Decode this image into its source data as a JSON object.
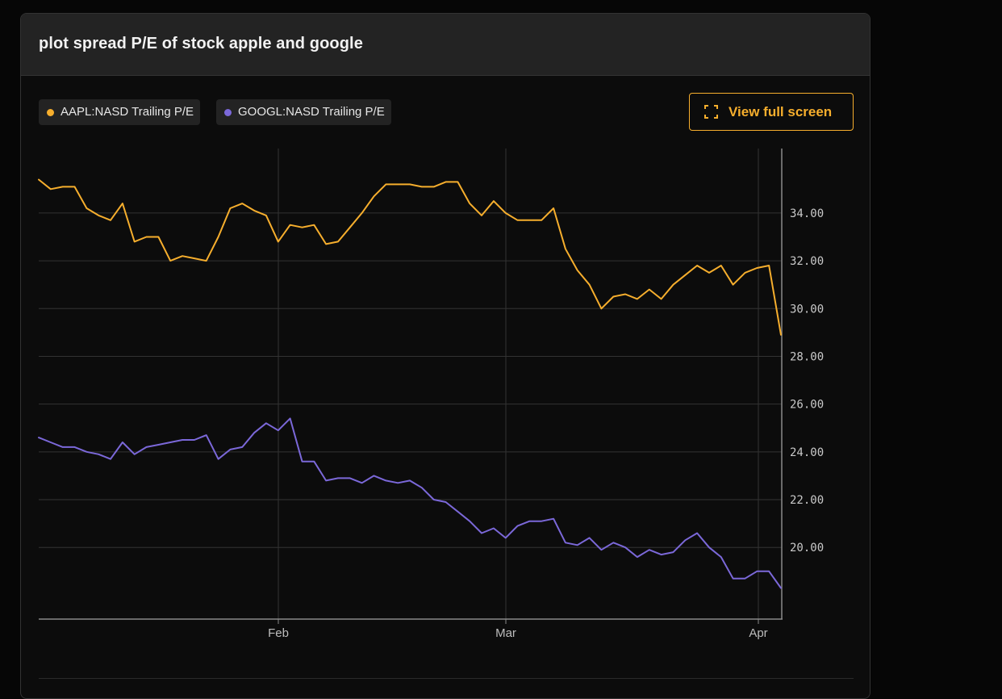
{
  "panel": {
    "title": "plot spread P/E of stock apple and google",
    "fullscreen_label": "View full screen"
  },
  "colors": {
    "aapl": "#f6ae2d",
    "googl": "#7b68d9",
    "grid": "#333333",
    "axis": "#8a8a8a"
  },
  "chart_data": {
    "type": "line",
    "legend_placement": "top-left",
    "grid": true,
    "x_tick_labels": [
      "Feb",
      "Mar",
      "Apr"
    ],
    "y_tick_labels": [
      "20.00",
      "22.00",
      "24.00",
      "26.00",
      "28.00",
      "30.00",
      "32.00",
      "34.00"
    ],
    "y_ticks": [
      20,
      22,
      24,
      26,
      28,
      30,
      32,
      34
    ],
    "ylim": [
      17,
      36.7
    ],
    "series": [
      {
        "name": "AAPL:NASD Trailing P/E",
        "color": "#f6ae2d",
        "values": [
          35.4,
          35.0,
          35.1,
          35.1,
          34.2,
          33.9,
          33.7,
          34.4,
          32.8,
          33.0,
          33.0,
          32.0,
          32.2,
          32.1,
          32.0,
          33.0,
          34.2,
          34.4,
          34.1,
          33.9,
          32.8,
          33.5,
          33.4,
          33.5,
          32.7,
          32.8,
          33.4,
          34.0,
          34.7,
          35.2,
          35.2,
          35.2,
          35.1,
          35.1,
          35.3,
          35.3,
          34.4,
          33.9,
          34.5,
          34.0,
          33.7,
          33.7,
          33.7,
          34.2,
          32.5,
          31.6,
          31.0,
          30.0,
          30.5,
          30.6,
          30.4,
          30.8,
          30.4,
          31.0,
          31.4,
          31.8,
          31.5,
          31.8,
          31.0,
          31.5,
          31.7,
          31.8,
          28.9
        ]
      },
      {
        "name": "GOOGL:NASD Trailing P/E",
        "color": "#7b68d9",
        "values": [
          24.6,
          24.4,
          24.2,
          24.2,
          24.0,
          23.9,
          23.7,
          24.4,
          23.9,
          24.2,
          24.3,
          24.4,
          24.5,
          24.5,
          24.7,
          23.7,
          24.1,
          24.2,
          24.8,
          25.2,
          24.9,
          25.4,
          23.6,
          23.6,
          22.8,
          22.9,
          22.9,
          22.7,
          23.0,
          22.8,
          22.7,
          22.8,
          22.5,
          22.0,
          21.9,
          21.5,
          21.1,
          20.6,
          20.8,
          20.4,
          20.9,
          21.1,
          21.1,
          21.2,
          20.2,
          20.1,
          20.4,
          19.9,
          20.2,
          20.0,
          19.6,
          19.9,
          19.7,
          19.8,
          20.3,
          20.6,
          20.0,
          19.6,
          18.7,
          18.7,
          19.0,
          19.0,
          18.3
        ]
      }
    ]
  }
}
